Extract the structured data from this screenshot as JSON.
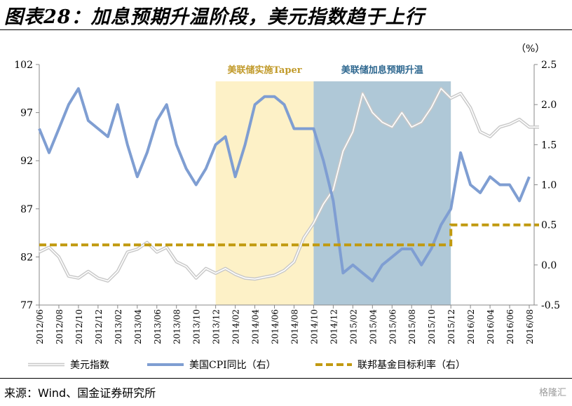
{
  "header": {
    "title": "图表28：加息预期升温阶段，美元指数趋于上行"
  },
  "footer": {
    "source": "来源：Wind、国金证券研究所",
    "watermark": "格隆汇"
  },
  "chart_data": {
    "type": "line",
    "right_axis_unit": "（%）",
    "left_axis": {
      "ylim": [
        77,
        102
      ],
      "ticks": [
        "102",
        "97",
        "92",
        "87",
        "82",
        "77"
      ]
    },
    "right_axis": {
      "ylim": [
        -0.5,
        2.5
      ],
      "ticks": [
        "2.5",
        "2.0",
        "1.5",
        "1.0",
        "0.5",
        "0.0",
        "-0.5"
      ]
    },
    "x_tick_labels": [
      "2012/06",
      "2012/08",
      "2012/10",
      "2012/12",
      "2013/02",
      "2013/04",
      "2013/06",
      "2013/08",
      "2013/10",
      "2013/12",
      "2014/02",
      "2014/04",
      "2014/06",
      "2014/08",
      "2014/10",
      "2014/12",
      "2015/02",
      "2015/04",
      "2015/06",
      "2015/08",
      "2015/10",
      "2015/12",
      "2016/02",
      "2016/04",
      "2016/06",
      "2016/08"
    ],
    "annotations": [
      {
        "label": "美联储实施Taper",
        "start": "2013/12",
        "end": "2014/10",
        "color": "#fdf1c7",
        "text_color": "#c19a2a"
      },
      {
        "label": "美联储加息预期升温",
        "start": "2014/10",
        "end": "2015/12",
        "color": "#afc8d7",
        "text_color": "#2f6890"
      }
    ],
    "series": [
      {
        "name": "美元指数",
        "axis": "left",
        "color": "#c8c8c8",
        "style": "double",
        "points": [
          [
            "2012/06",
            82.5
          ],
          [
            "2012/07",
            83.0
          ],
          [
            "2012/08",
            82.0
          ],
          [
            "2012/09",
            80.0
          ],
          [
            "2012/10",
            79.8
          ],
          [
            "2012/11",
            80.5
          ],
          [
            "2012/12",
            79.8
          ],
          [
            "2013/01",
            79.5
          ],
          [
            "2013/02",
            80.5
          ],
          [
            "2013/03",
            82.5
          ],
          [
            "2013/04",
            82.8
          ],
          [
            "2013/05",
            83.5
          ],
          [
            "2013/06",
            82.5
          ],
          [
            "2013/07",
            83.0
          ],
          [
            "2013/08",
            81.5
          ],
          [
            "2013/09",
            81.0
          ],
          [
            "2013/10",
            79.8
          ],
          [
            "2013/11",
            80.8
          ],
          [
            "2013/12",
            80.3
          ],
          [
            "2014/01",
            80.8
          ],
          [
            "2014/02",
            80.2
          ],
          [
            "2014/03",
            79.8
          ],
          [
            "2014/04",
            79.7
          ],
          [
            "2014/05",
            79.9
          ],
          [
            "2014/06",
            80.1
          ],
          [
            "2014/07",
            80.6
          ],
          [
            "2014/08",
            81.5
          ],
          [
            "2014/09",
            84.0
          ],
          [
            "2014/10",
            85.5
          ],
          [
            "2014/11",
            87.5
          ],
          [
            "2014/12",
            89.0
          ],
          [
            "2015/01",
            93.0
          ],
          [
            "2015/02",
            95.0
          ],
          [
            "2015/03",
            99.0
          ],
          [
            "2015/04",
            97.0
          ],
          [
            "2015/05",
            96.0
          ],
          [
            "2015/06",
            95.5
          ],
          [
            "2015/07",
            97.0
          ],
          [
            "2015/08",
            95.5
          ],
          [
            "2015/09",
            96.0
          ],
          [
            "2015/10",
            97.5
          ],
          [
            "2015/11",
            99.5
          ],
          [
            "2015/12",
            98.5
          ],
          [
            "2016/01",
            99.0
          ],
          [
            "2016/02",
            97.5
          ],
          [
            "2016/03",
            95.0
          ],
          [
            "2016/04",
            94.5
          ],
          [
            "2016/05",
            95.5
          ],
          [
            "2016/06",
            95.8
          ],
          [
            "2016/07",
            96.3
          ],
          [
            "2016/08",
            95.5
          ],
          [
            "2016/09",
            95.5
          ]
        ]
      },
      {
        "name": "美国CPI同比（右）",
        "axis": "right",
        "color": "#7f9ed2",
        "style": "solid",
        "points": [
          [
            "2012/06",
            1.7
          ],
          [
            "2012/07",
            1.4
          ],
          [
            "2012/08",
            1.7
          ],
          [
            "2012/09",
            2.0
          ],
          [
            "2012/10",
            2.2
          ],
          [
            "2012/11",
            1.8
          ],
          [
            "2012/12",
            1.7
          ],
          [
            "2013/01",
            1.6
          ],
          [
            "2013/02",
            2.0
          ],
          [
            "2013/03",
            1.5
          ],
          [
            "2013/04",
            1.1
          ],
          [
            "2013/05",
            1.4
          ],
          [
            "2013/06",
            1.8
          ],
          [
            "2013/07",
            2.0
          ],
          [
            "2013/08",
            1.5
          ],
          [
            "2013/09",
            1.2
          ],
          [
            "2013/10",
            1.0
          ],
          [
            "2013/11",
            1.2
          ],
          [
            "2013/12",
            1.5
          ],
          [
            "2014/01",
            1.6
          ],
          [
            "2014/02",
            1.1
          ],
          [
            "2014/03",
            1.5
          ],
          [
            "2014/04",
            2.0
          ],
          [
            "2014/05",
            2.1
          ],
          [
            "2014/06",
            2.1
          ],
          [
            "2014/07",
            2.0
          ],
          [
            "2014/08",
            1.7
          ],
          [
            "2014/09",
            1.7
          ],
          [
            "2014/10",
            1.7
          ],
          [
            "2014/11",
            1.3
          ],
          [
            "2014/12",
            0.8
          ],
          [
            "2015/01",
            -0.1
          ],
          [
            "2015/02",
            0.0
          ],
          [
            "2015/03",
            -0.1
          ],
          [
            "2015/04",
            -0.2
          ],
          [
            "2015/05",
            0.0
          ],
          [
            "2015/06",
            0.1
          ],
          [
            "2015/07",
            0.2
          ],
          [
            "2015/08",
            0.2
          ],
          [
            "2015/09",
            0.0
          ],
          [
            "2015/10",
            0.2
          ],
          [
            "2015/11",
            0.5
          ],
          [
            "2015/12",
            0.7
          ],
          [
            "2016/01",
            1.4
          ],
          [
            "2016/02",
            1.0
          ],
          [
            "2016/03",
            0.9
          ],
          [
            "2016/04",
            1.1
          ],
          [
            "2016/05",
            1.0
          ],
          [
            "2016/06",
            1.0
          ],
          [
            "2016/07",
            0.8
          ],
          [
            "2016/08",
            1.1
          ]
        ]
      },
      {
        "name": "联邦基金目标利率（右）",
        "axis": "right",
        "color": "#c19a10",
        "style": "dashed",
        "points": [
          [
            "2012/06",
            0.25
          ],
          [
            "2015/12",
            0.25
          ],
          [
            "2015/12",
            0.5
          ],
          [
            "2016/09",
            0.5
          ]
        ]
      }
    ]
  }
}
